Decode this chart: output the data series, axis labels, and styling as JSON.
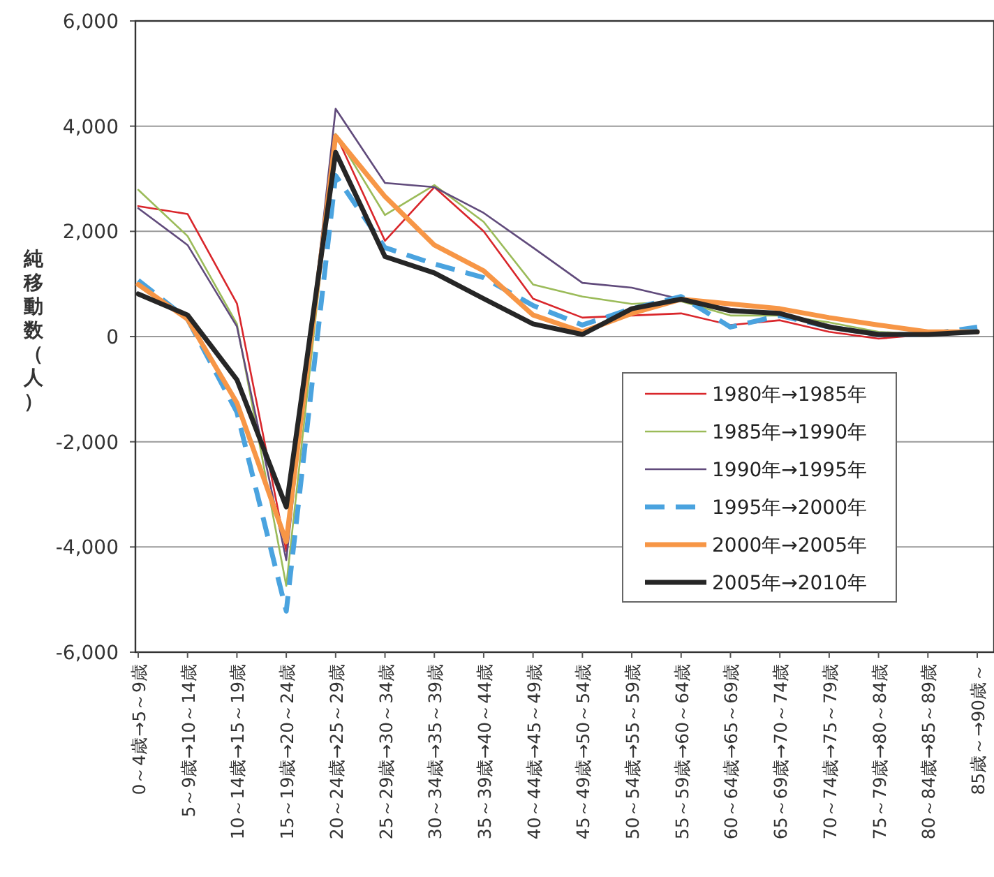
{
  "chart_data": {
    "type": "line",
    "ylabel": "純移動数（人）",
    "categories": [
      "0～4歳→5～9歳",
      "5～9歳→10～14歳",
      "10～14歳→15～19歳",
      "15～19歳→20～24歳",
      "20～24歳→25～29歳",
      "25～29歳→30～34歳",
      "30～34歳→35～39歳",
      "35～39歳→40～44歳",
      "40～44歳→45～49歳",
      "45～49歳→50～54歳",
      "50～54歳→55～59歳",
      "55～59歳→60～64歳",
      "60～64歳→65～69歳",
      "65～69歳→70～74歳",
      "70～74歳→75～79歳",
      "75～79歳→80～84歳",
      "80～84歳→85～89歳",
      "85歳～→90歳～"
    ],
    "series": [
      {
        "name": "1980年→1985年",
        "color": "#d9262b",
        "line_style": "solid",
        "values": [
          2480,
          2330,
          630,
          -4080,
          3850,
          1820,
          2840,
          2000,
          720,
          360,
          400,
          440,
          220,
          310,
          90,
          -40,
          40,
          90
        ]
      },
      {
        "name": "1985年→1990年",
        "color": "#9bbb59",
        "line_style": "solid",
        "values": [
          2790,
          1910,
          240,
          -4740,
          3850,
          2310,
          2880,
          2180,
          990,
          760,
          620,
          670,
          400,
          400,
          270,
          90,
          40,
          90
        ]
      },
      {
        "name": "1990年→1995年",
        "color": "#604a7b",
        "line_style": "solid",
        "values": [
          2440,
          1740,
          190,
          -4250,
          4330,
          2920,
          2840,
          2350,
          1690,
          1020,
          930,
          710,
          530,
          440,
          220,
          0,
          40,
          90
        ]
      },
      {
        "name": "1995年→2000年",
        "color": "#4aa3df",
        "line_style": "dashed",
        "values": [
          1070,
          330,
          -1440,
          -5220,
          3060,
          1690,
          1380,
          1120,
          590,
          220,
          530,
          760,
          180,
          400,
          180,
          40,
          40,
          180
        ]
      },
      {
        "name": "2000年→2005年",
        "color": "#f79646",
        "line_style": "solid",
        "values": [
          990,
          330,
          -1260,
          -3900,
          3810,
          2660,
          1740,
          1250,
          410,
          90,
          440,
          710,
          620,
          530,
          360,
          220,
          90,
          90
        ]
      },
      {
        "name": "2005年→2010年",
        "color": "#262626",
        "line_style": "solid",
        "values": [
          810,
          410,
          -820,
          -3240,
          3500,
          1520,
          1210,
          720,
          240,
          40,
          530,
          710,
          490,
          440,
          180,
          40,
          40,
          90
        ]
      }
    ],
    "ylim": [
      -6000,
      6000
    ],
    "yticks": [
      {
        "value": -6000,
        "label": "-6,000"
      },
      {
        "value": -4000,
        "label": "-4,000"
      },
      {
        "value": -2000,
        "label": "-2,000"
      },
      0,
      {
        "value": 2000,
        "label": "2,000"
      },
      {
        "value": 4000,
        "label": "4,000"
      },
      {
        "value": 6000,
        "label": "6,000"
      }
    ],
    "grid": "y",
    "legend": "bottom right"
  }
}
